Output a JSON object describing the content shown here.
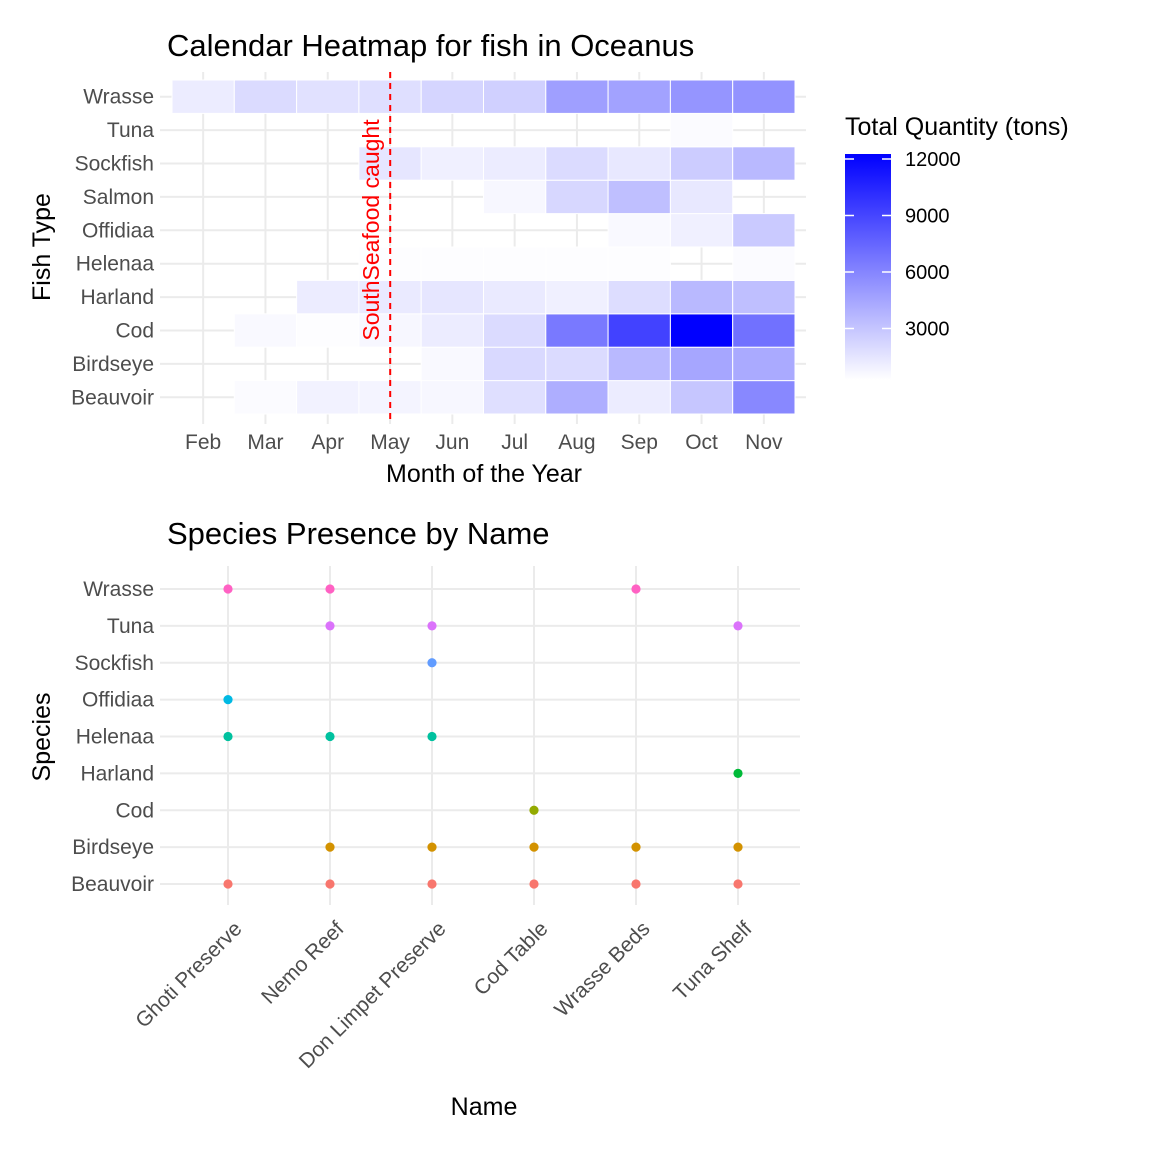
{
  "chart_data": [
    {
      "type": "heatmap",
      "title": "Calendar Heatmap for fish in Oceanus",
      "xlabel": "Month of the Year",
      "ylabel": "Fish Type",
      "x_categories": [
        "Feb",
        "Mar",
        "Apr",
        "May",
        "Jun",
        "Jul",
        "Aug",
        "Sep",
        "Oct",
        "Nov"
      ],
      "y_categories": [
        "Beauvoir",
        "Birdseye",
        "Cod",
        "Harland",
        "Helenaa",
        "Offidiaa",
        "Salmon",
        "Sockfish",
        "Tuna",
        "Wrasse"
      ],
      "values": {
        "Wrasse": [
          900,
          1700,
          1400,
          1500,
          2000,
          2200,
          4500,
          4400,
          5000,
          5100
        ],
        "Tuna": [
          null,
          null,
          null,
          null,
          null,
          null,
          null,
          null,
          200,
          null
        ],
        "Sockfish": [
          null,
          null,
          null,
          1200,
          700,
          900,
          1700,
          1100,
          2400,
          3300
        ],
        "Salmon": [
          null,
          null,
          null,
          null,
          null,
          400,
          1900,
          3000,
          1100,
          null
        ],
        "Offidiaa": [
          null,
          null,
          null,
          null,
          null,
          null,
          null,
          300,
          700,
          2500
        ],
        "Helenaa": [
          null,
          null,
          null,
          100,
          100,
          100,
          100,
          100,
          null,
          200
        ],
        "Harland": [
          null,
          null,
          900,
          1000,
          1200,
          1000,
          700,
          1600,
          3300,
          3000
        ],
        "Cod": [
          null,
          300,
          100,
          400,
          900,
          1700,
          6300,
          8900,
          12000,
          6700
        ],
        "Birdseye": [
          null,
          null,
          null,
          null,
          300,
          1800,
          1700,
          3300,
          4200,
          4000
        ],
        "Beauvoir": [
          null,
          200,
          600,
          500,
          400,
          1500,
          3800,
          900,
          2700,
          5600
        ]
      },
      "legend": {
        "title": "Total Quantity (tons)",
        "ticks": [
          3000,
          6000,
          9000,
          12000
        ],
        "range": [
          0,
          12000
        ],
        "low_color": "#ffffff",
        "high_color": "#0000ff",
        "placement": "right"
      },
      "annotation": {
        "label": "SouthSeafood caught",
        "between": [
          "May",
          "Jun"
        ],
        "color": "#ff0000",
        "style": "dashed vertical line"
      }
    },
    {
      "type": "scatter",
      "title": "Species Presence by Name",
      "xlabel": "Name",
      "ylabel": "Species",
      "x_categories": [
        "Ghoti Preserve",
        "Nemo Reef",
        "Don Limpet Preserve",
        "Cod Table",
        "Wrasse Beds",
        "Tuna Shelf"
      ],
      "y_categories": [
        "Beauvoir",
        "Birdseye",
        "Cod",
        "Harland",
        "Helenaa",
        "Offidiaa",
        "Sockfish",
        "Tuna",
        "Wrasse"
      ],
      "species_colors": {
        "Beauvoir": "#f8766d",
        "Birdseye": "#d39200",
        "Cod": "#93aa00",
        "Harland": "#00ba38",
        "Helenaa": "#00c19f",
        "Offidiaa": "#00b9e3",
        "Sockfish": "#619cff",
        "Tuna": "#db72fb",
        "Wrasse": "#ff61c3"
      },
      "points": [
        {
          "x": "Ghoti Preserve",
          "y": "Wrasse"
        },
        {
          "x": "Nemo Reef",
          "y": "Wrasse"
        },
        {
          "x": "Wrasse Beds",
          "y": "Wrasse"
        },
        {
          "x": "Nemo Reef",
          "y": "Tuna"
        },
        {
          "x": "Don Limpet Preserve",
          "y": "Tuna"
        },
        {
          "x": "Tuna Shelf",
          "y": "Tuna"
        },
        {
          "x": "Don Limpet Preserve",
          "y": "Sockfish"
        },
        {
          "x": "Ghoti Preserve",
          "y": "Offidiaa"
        },
        {
          "x": "Ghoti Preserve",
          "y": "Helenaa"
        },
        {
          "x": "Nemo Reef",
          "y": "Helenaa"
        },
        {
          "x": "Don Limpet Preserve",
          "y": "Helenaa"
        },
        {
          "x": "Tuna Shelf",
          "y": "Harland"
        },
        {
          "x": "Cod Table",
          "y": "Cod"
        },
        {
          "x": "Nemo Reef",
          "y": "Birdseye"
        },
        {
          "x": "Don Limpet Preserve",
          "y": "Birdseye"
        },
        {
          "x": "Cod Table",
          "y": "Birdseye"
        },
        {
          "x": "Wrasse Beds",
          "y": "Birdseye"
        },
        {
          "x": "Tuna Shelf",
          "y": "Birdseye"
        },
        {
          "x": "Ghoti Preserve",
          "y": "Beauvoir"
        },
        {
          "x": "Nemo Reef",
          "y": "Beauvoir"
        },
        {
          "x": "Don Limpet Preserve",
          "y": "Beauvoir"
        },
        {
          "x": "Cod Table",
          "y": "Beauvoir"
        },
        {
          "x": "Wrasse Beds",
          "y": "Beauvoir"
        },
        {
          "x": "Tuna Shelf",
          "y": "Beauvoir"
        }
      ]
    }
  ]
}
